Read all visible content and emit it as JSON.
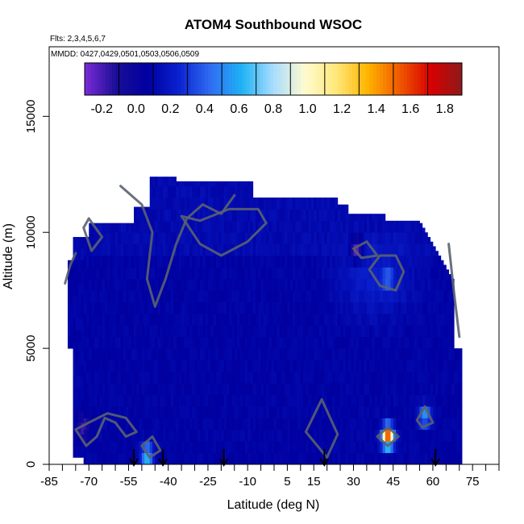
{
  "chart_data": {
    "type": "heatmap",
    "title": "ATOM4 Southbound WSOC",
    "flights_label": "Flts: 2,3,4,5,6,7",
    "dates_label": "MMDD: 0427,0429,0501,0503,0506,0509",
    "xlabel": "Latitude (deg N)",
    "ylabel": "Altitude (m)",
    "xlim": [
      -85,
      85
    ],
    "ylim": [
      0,
      18000
    ],
    "x_ticks": [
      "-85",
      "-70",
      "-55",
      "-40",
      "-25",
      "-10",
      "5",
      "15",
      "30",
      "45",
      "60",
      "75"
    ],
    "x_tick_values": [
      -85,
      -70,
      -55,
      -40,
      -25,
      -10,
      5,
      15,
      30,
      45,
      60,
      75
    ],
    "y_ticks": [
      "0",
      "5000",
      "10000",
      "15000"
    ],
    "y_tick_values": [
      0,
      5000,
      10000,
      15000
    ],
    "colorbar": {
      "min": -0.3,
      "max": 1.9,
      "ticks": [
        "-0.2",
        "0.0",
        "0.2",
        "0.4",
        "0.6",
        "0.8",
        "1.0",
        "1.2",
        "1.4",
        "1.6",
        "1.8"
      ],
      "tick_values": [
        -0.2,
        0.0,
        0.2,
        0.4,
        0.6,
        0.8,
        1.0,
        1.2,
        1.4,
        1.6,
        1.8
      ],
      "colors": [
        "#7B2BD6",
        "#1a0e96",
        "#0000a0",
        "#0a22d0",
        "#2f6df2",
        "#1fb2f5",
        "#a8dcff",
        "#fffbd0",
        "#ffe87a",
        "#ffb400",
        "#f05a00",
        "#d80000",
        "#8e1a1a"
      ]
    },
    "flight_marker_latitudes": [
      -53,
      -42,
      -19,
      19,
      61
    ],
    "highlights": [
      {
        "lat": 43,
        "alt": 1200,
        "value": 1.6
      },
      {
        "lat": 57,
        "alt": 2100,
        "value": 0.6
      },
      {
        "lat": 43,
        "alt": 8000,
        "value": 0.45
      },
      {
        "lat": -48,
        "alt": 400,
        "value": 0.7
      },
      {
        "lat": 31,
        "alt": 9300,
        "value": -0.25
      },
      {
        "lat": -72,
        "alt": 1600,
        "value": -0.2
      }
    ]
  }
}
